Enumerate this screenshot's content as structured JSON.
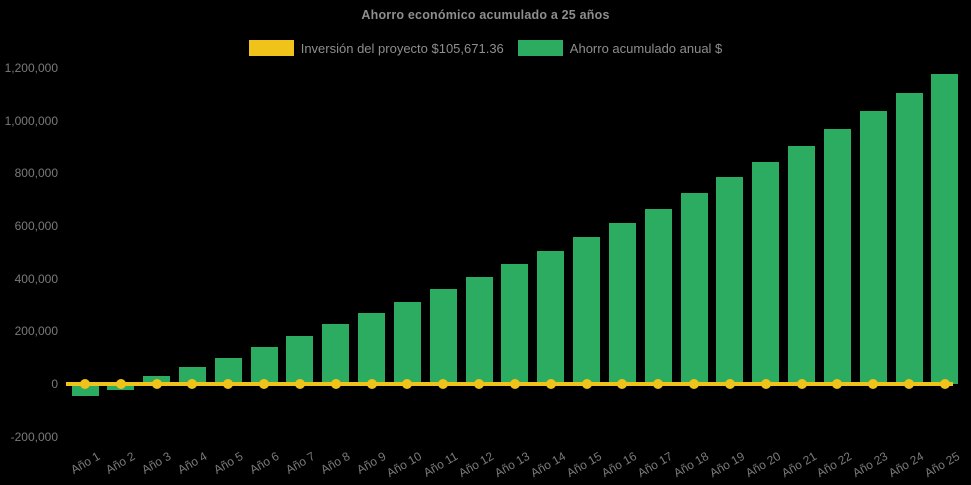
{
  "title": "Ahorro económico acumulado a 25 años",
  "colors": {
    "background": "#000000",
    "bar_green": "#2BAC60",
    "line_yellow": "#EFC319",
    "title_text": "#8E8E8E",
    "legend_text": "#8E8E8E",
    "axis_text": "#7A7A7A"
  },
  "legend": {
    "investment": {
      "label": "Inversión del proyecto $105,671.36",
      "color": "#EFC319"
    },
    "savings": {
      "label": "Ahorro acumulado anual $",
      "color": "#2BAC60"
    }
  },
  "y_axis": {
    "tick_labels": [
      "1,200,000",
      "1,000,000",
      "800,000",
      "600,000",
      "400,000",
      "200,000",
      "0",
      "-200,000"
    ],
    "tick_values": [
      1200000,
      1000000,
      800000,
      600000,
      400000,
      200000,
      0,
      -200000
    ]
  },
  "chart_data": {
    "type": "bar",
    "title": "Ahorro económico acumulado a 25 años",
    "xlabel": "",
    "ylabel": "",
    "ylim": [
      -200000,
      1200000
    ],
    "grid": false,
    "legend_position": "top",
    "categories": [
      "Año 1",
      "Año 2",
      "Año 3",
      "Año 4",
      "Año 5",
      "Año 6",
      "Año 7",
      "Año 8",
      "Año 9",
      "Año 10",
      "Año 11",
      "Año 12",
      "Año 13",
      "Año 14",
      "Año 15",
      "Año 16",
      "Año 17",
      "Año 18",
      "Año 19",
      "Año 20",
      "Año 21",
      "Año 22",
      "Año 23",
      "Año 24",
      "Año 25"
    ],
    "series": [
      {
        "name": "Ahorro acumulado anual $",
        "type": "bar",
        "color": "#2BAC60",
        "values": [
          -45000,
          -21000,
          29000,
          63000,
          100000,
          139000,
          182000,
          226000,
          270000,
          313000,
          361000,
          405000,
          456000,
          506000,
          559000,
          613000,
          665000,
          725000,
          786000,
          843000,
          902000,
          969000,
          1035000,
          1105000,
          1176000
        ]
      },
      {
        "name": "Inversión del proyecto $105,671.36",
        "type": "line",
        "color": "#EFC319",
        "marker": "circle",
        "values": [
          0,
          0,
          0,
          0,
          0,
          0,
          0,
          0,
          0,
          0,
          0,
          0,
          0,
          0,
          0,
          0,
          0,
          0,
          0,
          0,
          0,
          0,
          0,
          0,
          0
        ]
      }
    ]
  }
}
